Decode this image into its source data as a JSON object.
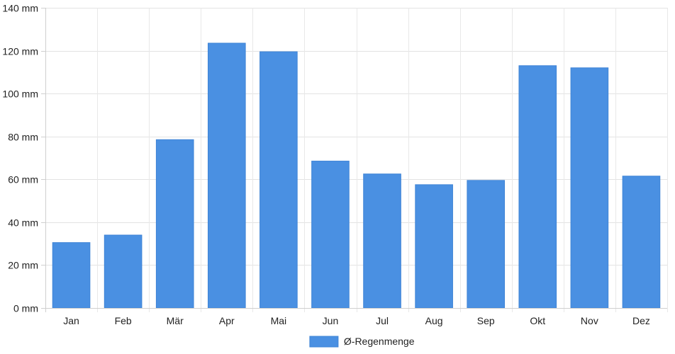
{
  "chart_data": {
    "type": "bar",
    "categories": [
      "Jan",
      "Feb",
      "Mär",
      "Apr",
      "Mai",
      "Jun",
      "Jul",
      "Aug",
      "Sep",
      "Okt",
      "Nov",
      "Dez"
    ],
    "series": [
      {
        "name": "Ø-Regenmenge",
        "color": "#4a90e2",
        "values": [
          30.5,
          34,
          78.5,
          123.5,
          119.5,
          68.5,
          62.5,
          57.5,
          59.5,
          113,
          112,
          61.5
        ]
      }
    ],
    "ylim": [
      0,
      140
    ],
    "yticks": [
      0,
      20,
      40,
      60,
      80,
      100,
      120,
      140
    ],
    "yunit": "mm",
    "grid": true,
    "legend_position": "bottom-center",
    "title": "",
    "xlabel": "",
    "ylabel": ""
  }
}
